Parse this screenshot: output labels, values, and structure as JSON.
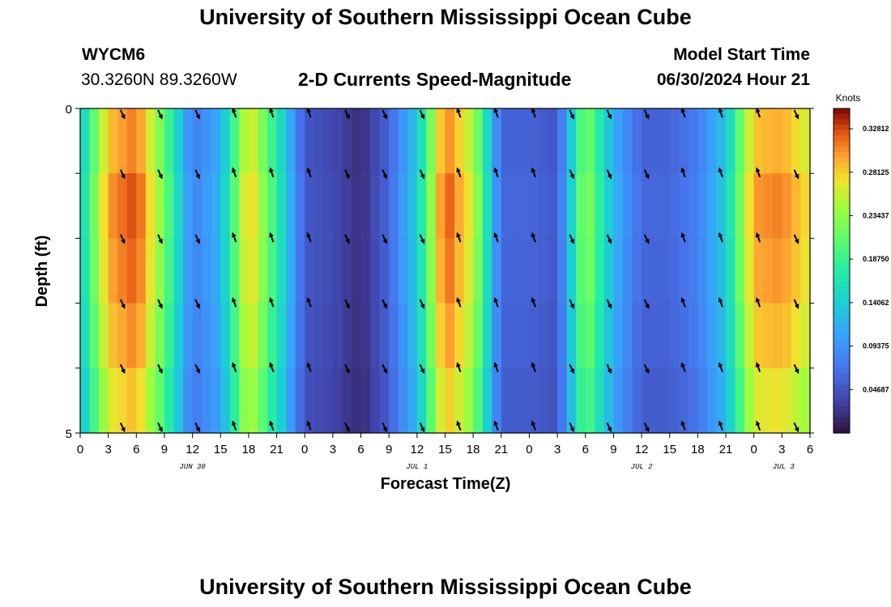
{
  "header": {
    "title": "University of Southern Mississippi Ocean Cube",
    "station_id": "WYCM6",
    "station_coords": "30.3260N  89.3260W",
    "plot_title": "2-D Currents Speed-Magnitude",
    "model_start_label": "Model Start Time",
    "model_start_time": "06/30/2024 Hour 21"
  },
  "footer": {
    "title": "University of Southern Mississippi Ocean Cube"
  },
  "chart_data": {
    "type": "heatmap",
    "title": "2-D Currents Speed-Magnitude",
    "xlabel": "Forecast Time(Z)",
    "ylabel": "Depth (ft)",
    "ylim": [
      0,
      5
    ],
    "y_tick_labels": [
      "0",
      "5"
    ],
    "x_tick_labels": [
      "0",
      "3",
      "6",
      "9",
      "12",
      "15",
      "18",
      "21",
      "0",
      "3",
      "6",
      "9",
      "12",
      "15",
      "18",
      "21",
      "0",
      "3",
      "6",
      "9",
      "12",
      "15",
      "18",
      "21",
      "0",
      "3",
      "6"
    ],
    "date_labels": [
      "JUN 30",
      "JUL 1",
      "JUL 2",
      "JUL 3"
    ],
    "colorbar": {
      "label": "Knots",
      "range": [
        0.0,
        0.35
      ],
      "tick_labels": [
        "0.32812",
        "0.28125",
        "0.23437",
        "0.18750",
        "0.14062",
        "0.09375",
        "0.04687"
      ],
      "tick_values": [
        0.32812,
        0.28125,
        0.23437,
        0.1875,
        0.14062,
        0.09375,
        0.04687
      ]
    },
    "forecast_hours": [
      0,
      3,
      6,
      9,
      12,
      15,
      18,
      21,
      24,
      27,
      30,
      33,
      36,
      39,
      42,
      45,
      48,
      51,
      54,
      57,
      60,
      63,
      66,
      69,
      72,
      75,
      78
    ],
    "surface_speed_knots": [
      0.14,
      0.3,
      0.33,
      0.22,
      0.08,
      0.12,
      0.29,
      0.18,
      0.05,
      0.04,
      0.02,
      0.06,
      0.14,
      0.33,
      0.26,
      0.06,
      0.06,
      0.05,
      0.24,
      0.12,
      0.06,
      0.06,
      0.08,
      0.14,
      0.3,
      0.31,
      0.27
    ],
    "depth_profile_factor": [
      0.95,
      1.0,
      0.98,
      0.94,
      0.88
    ]
  }
}
